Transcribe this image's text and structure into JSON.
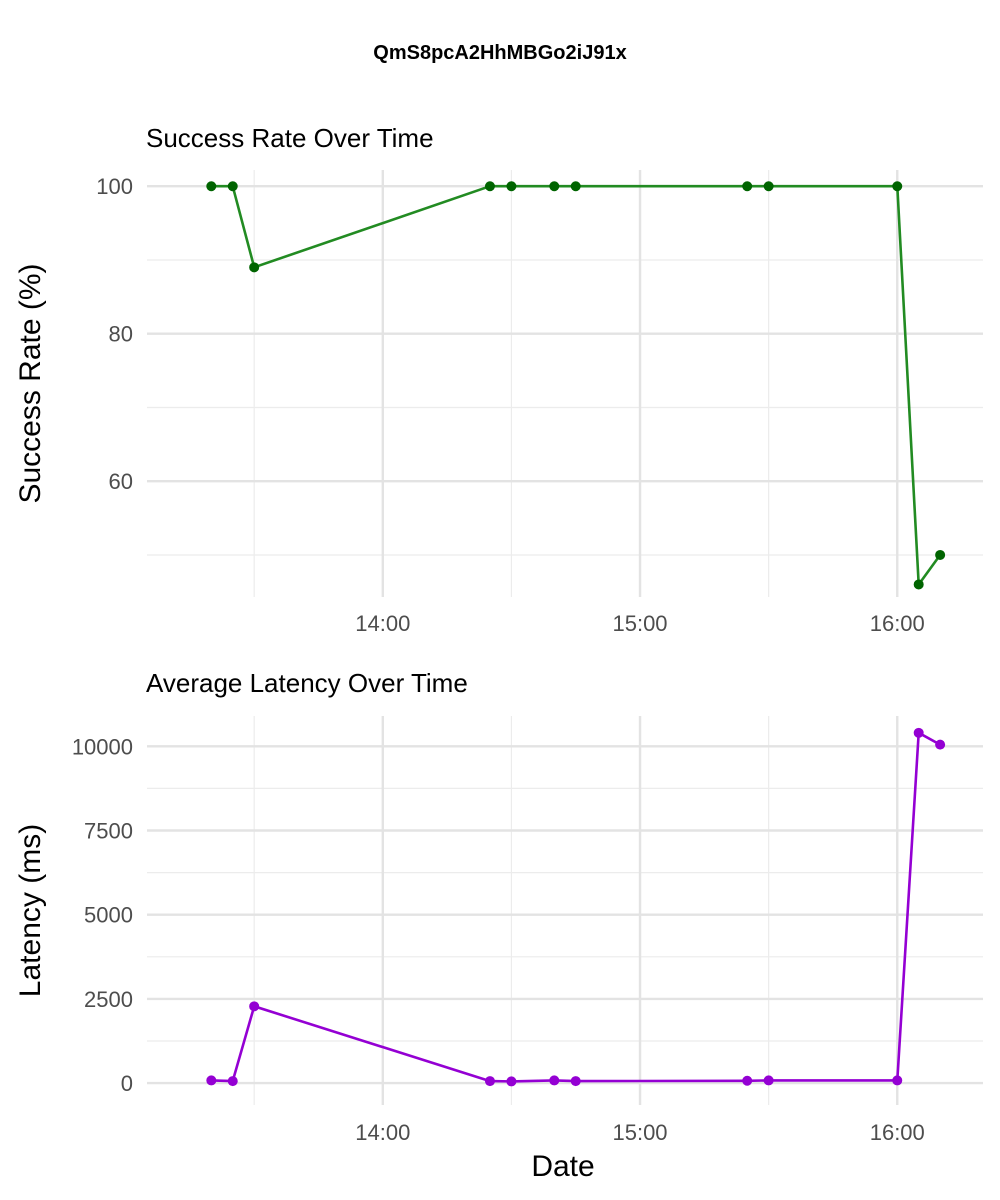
{
  "page": {
    "title": "QmS8pcA2HhMBGo2iJ91x"
  },
  "chart_data": [
    {
      "type": "line",
      "title": "Success Rate Over Time",
      "xlabel": "",
      "ylabel": "Success Rate (%)",
      "color": "#228B22",
      "point_color": "#006400",
      "grid": true,
      "x_ticks": [
        "14:00",
        "15:00",
        "16:00"
      ],
      "y_ticks": [
        60,
        80,
        100
      ],
      "xlim": [
        "13:05",
        "16:20"
      ],
      "ylim": [
        44.3,
        102.2
      ],
      "x": [
        "13:20",
        "13:25",
        "13:30",
        "14:25",
        "14:30",
        "14:40",
        "14:45",
        "15:25",
        "15:30",
        "16:00",
        "16:05",
        "16:10"
      ],
      "values": [
        100,
        100,
        89,
        100,
        100,
        100,
        100,
        100,
        100,
        100,
        46,
        50
      ]
    },
    {
      "type": "line",
      "title": "Average Latency Over Time",
      "xlabel": "Date",
      "ylabel": "Latency (ms)",
      "color": "#9400D3",
      "point_color": "#9400D3",
      "grid": true,
      "x_ticks": [
        "14:00",
        "15:00",
        "16:00"
      ],
      "y_ticks": [
        0,
        2500,
        5000,
        7500,
        10000
      ],
      "xlim": [
        "13:05",
        "16:20"
      ],
      "ylim": [
        -650,
        10900
      ],
      "x": [
        "13:20",
        "13:25",
        "13:30",
        "14:25",
        "14:30",
        "14:40",
        "14:45",
        "15:25",
        "15:30",
        "16:00",
        "16:05",
        "16:10"
      ],
      "values": [
        80,
        60,
        2280,
        60,
        50,
        80,
        60,
        70,
        80,
        80,
        10400,
        10050
      ]
    }
  ]
}
